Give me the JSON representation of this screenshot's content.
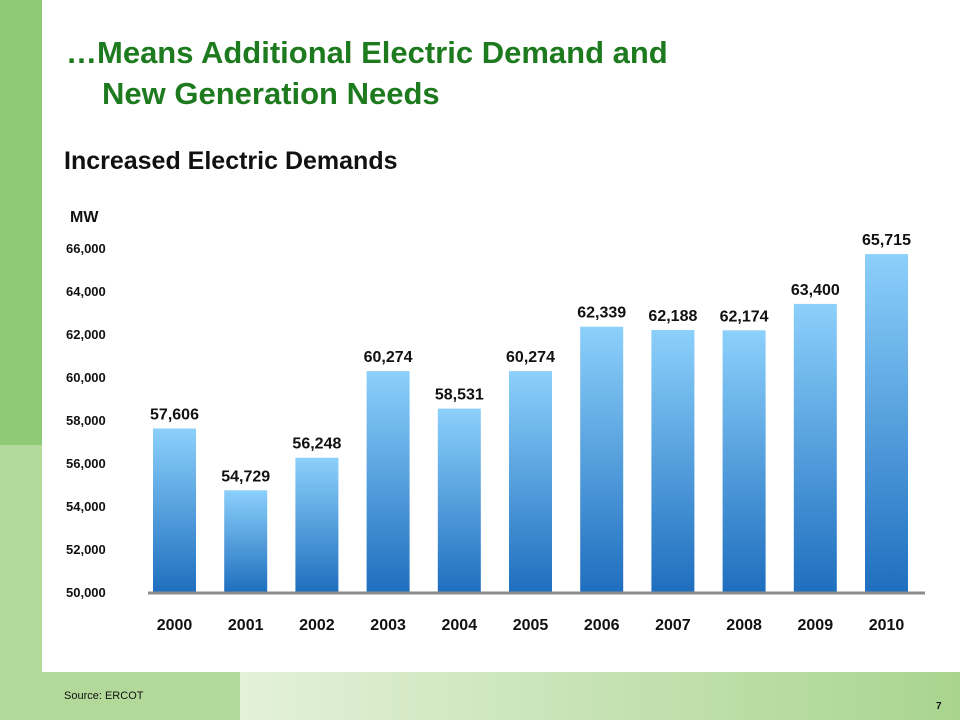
{
  "slide": {
    "title_line1": "…Means Additional Electric Demand and",
    "title_line2": "New Generation Needs",
    "subtitle": "Increased Electric Demands",
    "source": "Source: ERCOT",
    "page_number": "7"
  },
  "colors": {
    "title": "#1e7a1e",
    "band_dark": "#8fca77",
    "band_light": "#b2d99a",
    "bar_top": "#8cd0fb",
    "bar_bottom": "#1f6fbf",
    "axis": "#8c8c8c"
  },
  "chart_data": {
    "type": "bar",
    "title": "",
    "ylabel": "MW",
    "xlabel": "",
    "categories": [
      "2000",
      "2001",
      "2002",
      "2003",
      "2004",
      "2005",
      "2006",
      "2007",
      "2008",
      "2009",
      "2010"
    ],
    "values": [
      57606,
      54729,
      56248,
      60274,
      58531,
      60274,
      62339,
      62188,
      62174,
      63400,
      65715
    ],
    "data_labels": [
      "57,606",
      "54,729",
      "56,248",
      "60,274",
      "58,531",
      "60,274",
      "62,339",
      "62,188",
      "62,174",
      "63,400",
      "65,715"
    ],
    "ylim": [
      50000,
      66000
    ],
    "yticks": [
      50000,
      52000,
      54000,
      56000,
      58000,
      60000,
      62000,
      64000,
      66000
    ],
    "ytick_labels": [
      "50,000",
      "52,000",
      "54,000",
      "56,000",
      "58,000",
      "60,000",
      "62,000",
      "64,000",
      "66,000"
    ],
    "grid": false,
    "legend": "none"
  }
}
